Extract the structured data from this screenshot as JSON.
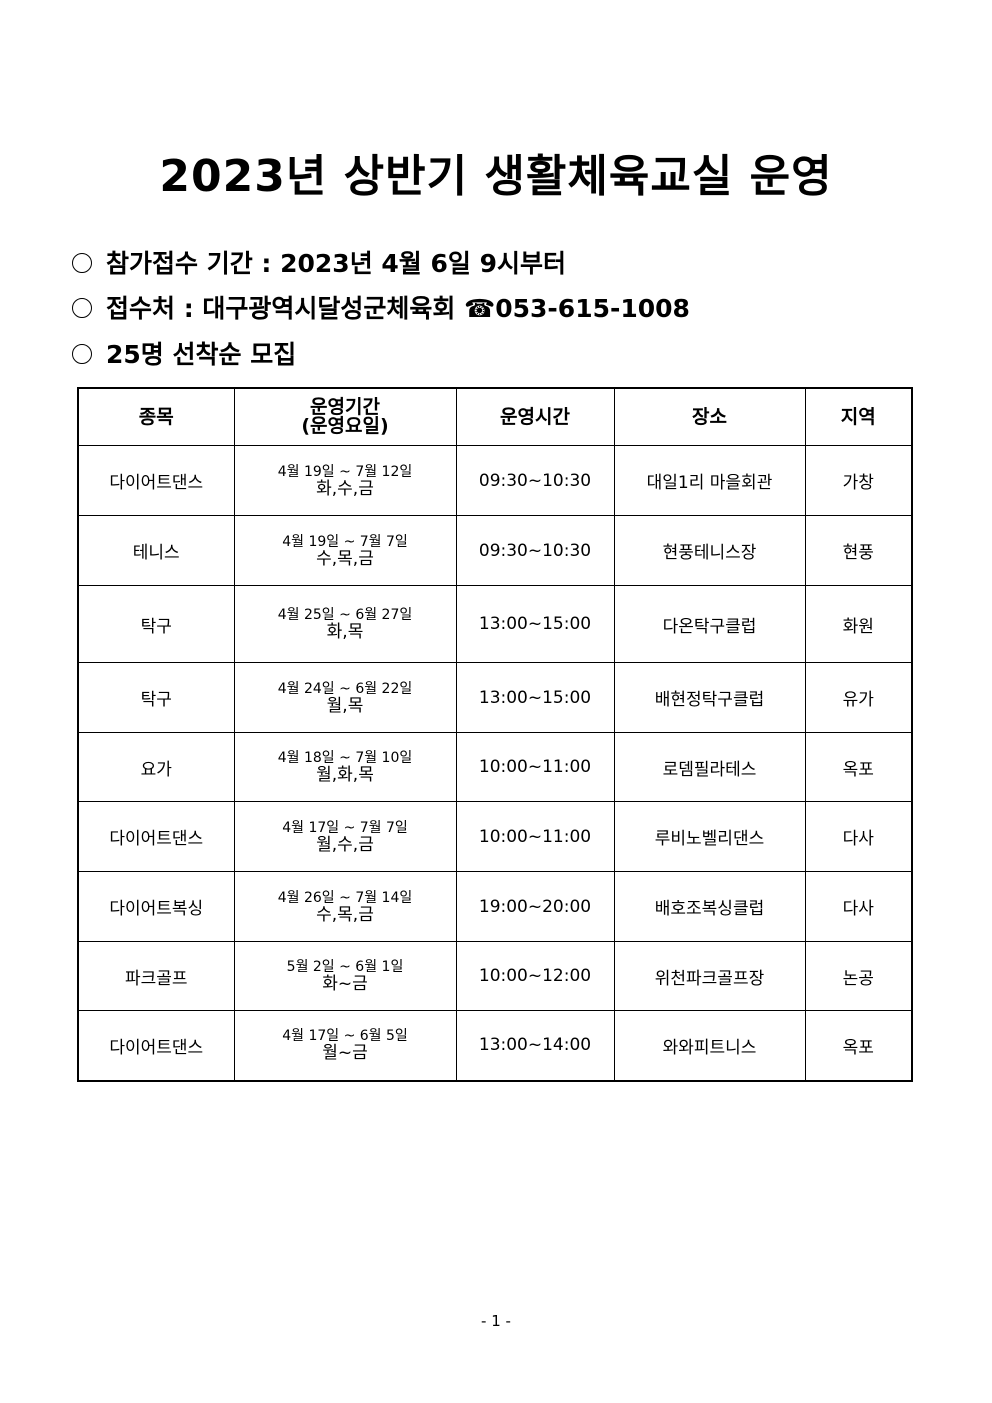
{
  "title": "2023년 상반기 생활체육교실 운영",
  "info": [
    {
      "text": "참가접수 기간 : 2023년 4월 6일 9시부터"
    },
    {
      "text": "접수처 : 대구광역시달성군체육회 ☎053-615-1008"
    },
    {
      "text": "25명 선착순 모집"
    }
  ],
  "table": {
    "headers": [
      "종목",
      "운영기간",
      "(운영요일)",
      "운영시간",
      "장소",
      "지역"
    ],
    "rows": [
      {
        "sport": "다이어트댄스",
        "period": "4월 19일 ~ 7월 12일",
        "days": "화,수,금",
        "time": "09:30~10:30",
        "place": "대일1리 마을회관",
        "region": "가창"
      },
      {
        "sport": "테니스",
        "period": "4월 19일 ~ 7월 7일",
        "days": "수,목,금",
        "time": "09:30~10:30",
        "place": "현풍테니스장",
        "region": "현풍"
      },
      {
        "sport": "탁구",
        "period": "4월 25일 ~ 6월 27일",
        "days": "화,목",
        "time": "13:00~15:00",
        "place": "다온탁구클럽",
        "region": "화원"
      },
      {
        "sport": "탁구",
        "period": "4월 24일 ~ 6월 22일",
        "days": "월,목",
        "time": "13:00~15:00",
        "place": "배현정탁구클럽",
        "region": "유가"
      },
      {
        "sport": "요가",
        "period": "4월 18일 ~ 7월 10일",
        "days": "월,화,목",
        "time": "10:00~11:00",
        "place": "로뎀필라테스",
        "region": "옥포"
      },
      {
        "sport": "다이어트댄스",
        "period": "4월 17일 ~ 7월 7일",
        "days": "월,수,금",
        "time": "10:00~11:00",
        "place": "루비노벨리댄스",
        "region": "다사"
      },
      {
        "sport": "다이어트복싱",
        "period": "4월 26일 ~ 7월 14일",
        "days": "수,목,금",
        "time": "19:00~20:00",
        "place": "배호조복싱클럽",
        "region": "다사"
      },
      {
        "sport": "파크골프",
        "period": "5월 2일 ~ 6월 1일",
        "days": "화~금",
        "time": "10:00~12:00",
        "place": "위천파크골프장",
        "region": "논공"
      },
      {
        "sport": "다이어트댄스",
        "period": "4월 17일 ~ 6월 5일",
        "days": "월~금",
        "time": "13:00~14:00",
        "place": "와와피트니스",
        "region": "옥포"
      }
    ]
  },
  "page_number": "- 1 -"
}
